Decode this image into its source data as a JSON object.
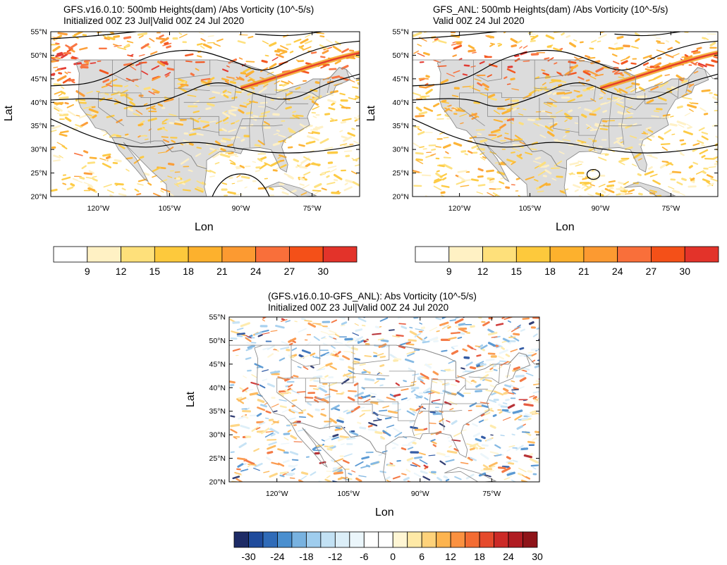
{
  "panels": {
    "top_left": {
      "title_line1": "GFS.v16.0.10: 500mb Heights(dam) /Abs Vorticity (10^-5/s)",
      "title_line2": "Initialized 00Z 23 Jul|Valid 00Z 24 Jul 2020",
      "xlabel": "Lon",
      "ylabel": "Lat"
    },
    "top_right": {
      "title_line1": "GFS_ANL: 500mb Heights(dam) /Abs Vorticity (10^-5/s)",
      "title_line2": "Valid 00Z 24 Jul 2020",
      "xlabel": "Lon",
      "ylabel": "Lat"
    },
    "bottom": {
      "title_line1": "(GFS.v16.0.10-GFS_ANL): Abs Vorticity (10^-5/s)",
      "title_line2": "Initialized 00Z 23 Jul|Valid 00Z 24 Jul 2020",
      "xlabel": "Lon",
      "ylabel": "Lat"
    }
  },
  "chart_data": [
    {
      "type": "heatmap",
      "panel": "top_left",
      "title": "GFS.v16.0.10: 500mb Heights(dam) /Abs Vorticity (10^-5/s)",
      "subtitle": "Initialized 00Z 23 Jul|Valid 00Z 24 Jul 2020",
      "xlabel": "Lon",
      "ylabel": "Lat",
      "xlim": [
        -130,
        -65
      ],
      "ylim": [
        20,
        55
      ],
      "x_ticks": [
        -120,
        -105,
        -90,
        -75
      ],
      "x_tick_labels": [
        "120°W",
        "105°W",
        "90°W",
        "75°W"
      ],
      "y_ticks": [
        20,
        25,
        30,
        35,
        40,
        45,
        50,
        55
      ],
      "y_tick_labels": [
        "20°N",
        "25°N",
        "30°N",
        "35°N",
        "40°N",
        "45°N",
        "50°N",
        "55°N"
      ],
      "colorbar_levels": [
        9,
        12,
        15,
        18,
        21,
        24,
        27,
        30
      ],
      "colorbar_tick_labels": [
        "9",
        "12",
        "15",
        "18",
        "21",
        "24",
        "27",
        "30"
      ],
      "colorbar_colors": [
        "#ffffff",
        "#fff1c4",
        "#fee07a",
        "#fdc93c",
        "#fdb12d",
        "#fc9a31",
        "#f96f3a",
        "#f45018",
        "#e3332a"
      ]
    },
    {
      "type": "heatmap",
      "panel": "top_right",
      "title": "GFS_ANL: 500mb Heights(dam) /Abs Vorticity (10^-5/s)",
      "subtitle": "Valid 00Z 24 Jul 2020",
      "xlabel": "Lon",
      "ylabel": "Lat",
      "xlim": [
        -130,
        -65
      ],
      "ylim": [
        20,
        55
      ],
      "x_ticks": [
        -120,
        -105,
        -90,
        -75
      ],
      "x_tick_labels": [
        "120°W",
        "105°W",
        "90°W",
        "75°W"
      ],
      "y_ticks": [
        20,
        25,
        30,
        35,
        40,
        45,
        50,
        55
      ],
      "y_tick_labels": [
        "20°N",
        "25°N",
        "30°N",
        "35°N",
        "40°N",
        "45°N",
        "50°N",
        "55°N"
      ],
      "colorbar_levels": [
        9,
        12,
        15,
        18,
        21,
        24,
        27,
        30
      ],
      "colorbar_tick_labels": [
        "9",
        "12",
        "15",
        "18",
        "21",
        "24",
        "27",
        "30"
      ],
      "colorbar_colors": [
        "#ffffff",
        "#fff1c4",
        "#fee07a",
        "#fdc93c",
        "#fdb12d",
        "#fc9a31",
        "#f96f3a",
        "#f45018",
        "#e3332a"
      ]
    },
    {
      "type": "heatmap",
      "panel": "bottom",
      "title": "(GFS.v16.0.10-GFS_ANL): Abs Vorticity (10^-5/s)",
      "subtitle": "Initialized 00Z 23 Jul|Valid 00Z 24 Jul 2020",
      "xlabel": "Lon",
      "ylabel": "Lat",
      "xlim": [
        -130,
        -65
      ],
      "ylim": [
        20,
        55
      ],
      "x_ticks": [
        -120,
        -105,
        -90,
        -75
      ],
      "x_tick_labels": [
        "120°W",
        "105°W",
        "90°W",
        "75°W"
      ],
      "y_ticks": [
        20,
        25,
        30,
        35,
        40,
        45,
        50,
        55
      ],
      "y_tick_labels": [
        "20°N",
        "25°N",
        "30°N",
        "35°N",
        "40°N",
        "45°N",
        "50°N",
        "55°N"
      ],
      "colorbar_levels": [
        -30,
        -27,
        -24,
        -21,
        -18,
        -15,
        -12,
        -9,
        -6,
        -3,
        0,
        3,
        6,
        9,
        12,
        15,
        18,
        21,
        24,
        27,
        30
      ],
      "colorbar_tick_labels": [
        "-30",
        "-24",
        "-18",
        "-12",
        "-6",
        "0",
        "6",
        "12",
        "18",
        "24",
        "30"
      ],
      "colorbar_colors": [
        "#1d2b66",
        "#1f4b9c",
        "#2f6bb8",
        "#4a8fcf",
        "#78b2e0",
        "#9fcdee",
        "#c2e1f4",
        "#dbeef8",
        "#ebf6fb",
        "#ffffff",
        "#ffffff",
        "#fff6d4",
        "#fee9a6",
        "#fed27a",
        "#fdb44f",
        "#fb9140",
        "#f36c33",
        "#e54a2c",
        "#cc2a27",
        "#b01c22",
        "#8e1419"
      ]
    }
  ]
}
